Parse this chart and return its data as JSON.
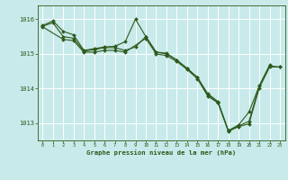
{
  "title": "Graphe pression niveau de la mer (hPa)",
  "background_color": "#c8eaea",
  "grid_color": "#a8d4d4",
  "line_color": "#2d5a1b",
  "marker_color": "#2d5a1b",
  "xlim": [
    -0.5,
    23.5
  ],
  "ylim": [
    1012.5,
    1016.4
  ],
  "yticks": [
    1013,
    1014,
    1015,
    1016
  ],
  "xticks": [
    0,
    1,
    2,
    3,
    4,
    5,
    6,
    7,
    8,
    9,
    10,
    11,
    12,
    13,
    14,
    15,
    16,
    17,
    18,
    19,
    20,
    21,
    22,
    23
  ],
  "series1_x": [
    0,
    1,
    2,
    3,
    4,
    5,
    6,
    7,
    8,
    9,
    10,
    11,
    12,
    13,
    14,
    15,
    16,
    17,
    18,
    19,
    20,
    21,
    22
  ],
  "series1_y": [
    1015.82,
    1015.95,
    1015.65,
    1015.55,
    1015.1,
    1015.15,
    1015.2,
    1015.22,
    1015.35,
    1016.0,
    1015.5,
    1015.05,
    1015.02,
    1014.82,
    1014.58,
    1014.32,
    1013.85,
    1013.62,
    1012.78,
    1012.95,
    1013.32,
    1014.08,
    1014.68
  ],
  "series2_x": [
    0,
    1,
    2,
    3,
    4,
    5,
    6,
    7,
    8,
    9,
    10,
    11,
    12,
    13,
    14,
    15,
    16,
    17,
    18,
    19,
    20,
    21,
    22,
    23
  ],
  "series2_y": [
    1015.8,
    1015.9,
    1015.5,
    1015.45,
    1015.08,
    1015.12,
    1015.18,
    1015.18,
    1015.1,
    1015.2,
    1015.5,
    1015.05,
    1015.0,
    1014.82,
    1014.58,
    1014.32,
    1013.82,
    1013.6,
    1012.78,
    1012.92,
    1013.05,
    1014.08,
    1014.65,
    1014.62
  ],
  "series3_x": [
    0,
    2,
    3,
    4,
    5,
    6,
    7,
    8,
    10,
    11,
    12,
    13,
    14,
    15,
    16,
    17,
    18,
    19,
    20,
    21,
    22,
    23
  ],
  "series3_y": [
    1015.78,
    1015.42,
    1015.38,
    1015.05,
    1015.05,
    1015.1,
    1015.1,
    1015.05,
    1015.45,
    1015.0,
    1014.95,
    1014.78,
    1014.55,
    1014.28,
    1013.78,
    1013.58,
    1012.76,
    1012.9,
    1012.98,
    1014.02,
    1014.62,
    1014.62
  ]
}
